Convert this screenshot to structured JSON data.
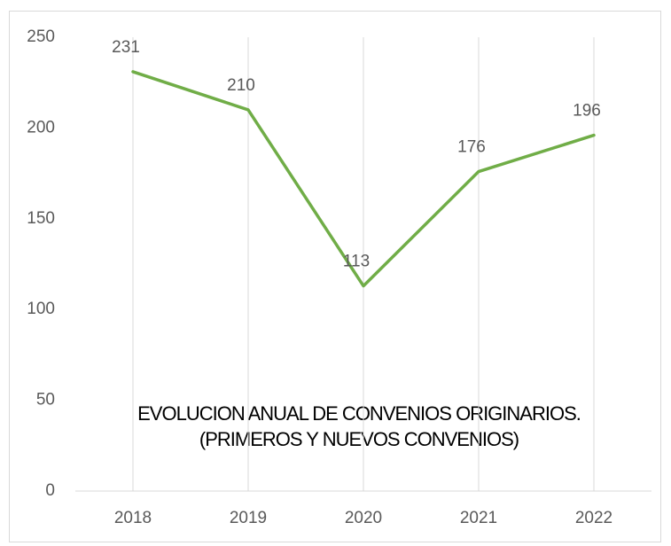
{
  "chart_data": {
    "type": "line",
    "title": [
      "EVOLUCION ANUAL DE CONVENIOS ORIGINARIOS.",
      "(PRIMEROS Y NUEVOS CONVENIOS)"
    ],
    "categories": [
      "2018",
      "2019",
      "2020",
      "2021",
      "2022"
    ],
    "values": [
      231,
      210,
      113,
      176,
      196
    ],
    "color": "#70ad47",
    "ylim": [
      0,
      250
    ],
    "yticks": [
      0,
      50,
      100,
      150,
      200,
      250
    ],
    "grid": true
  }
}
